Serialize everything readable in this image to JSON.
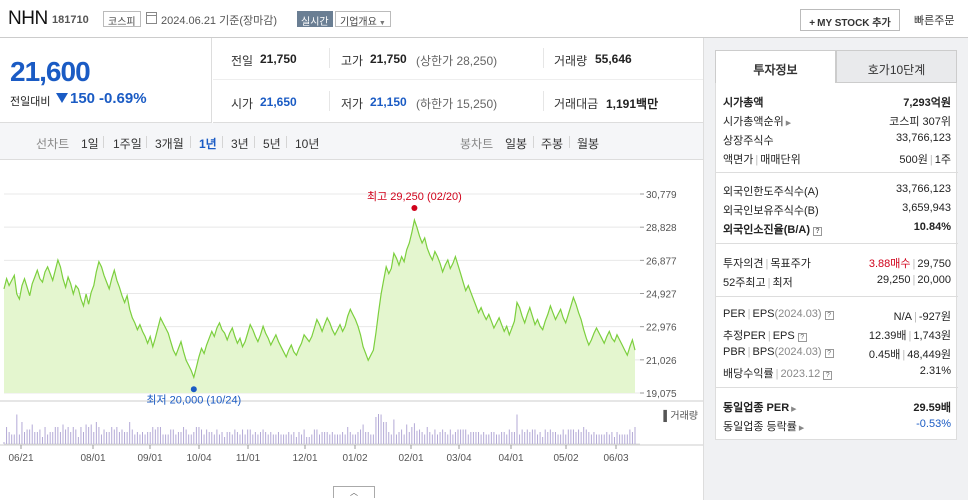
{
  "header": {
    "name": "NHN",
    "code": "181710",
    "market": "코스피",
    "date": "2024.06.21 기준(장마감)",
    "realtime": "실시간",
    "company_info": "기업개요",
    "mystock_label": "MY STOCK 추가",
    "quick_order": "빠른주문"
  },
  "price": {
    "current": "21,600",
    "change_label": "전일대비",
    "change": "150",
    "change_pct": "-0.69%"
  },
  "info": {
    "prev_label": "전일",
    "prev": "21,750",
    "high_label": "고가",
    "high": "21,750",
    "high_sub": "(상한가 28,250)",
    "volume_label": "거래량",
    "volume": "55,646",
    "open_label": "시가",
    "open": "21,650",
    "low_label": "저가",
    "low": "21,150",
    "low_sub": "(하한가 15,250)",
    "amount_label": "거래대금",
    "amount": "1,191",
    "amount_unit": "백만"
  },
  "periods": {
    "line_label": "선차트",
    "line": [
      "1일",
      "1주일",
      "3개월",
      "1년",
      "3년",
      "5년",
      "10년"
    ],
    "active": "1년",
    "candle_label": "봉차트",
    "candle": [
      "일봉",
      "주봉",
      "월봉"
    ]
  },
  "chart_data": {
    "type": "area",
    "yticks": [
      "30,779",
      "28,828",
      "26,877",
      "24,927",
      "22,976",
      "21,026",
      "19,075"
    ],
    "ylim": [
      19075,
      30779
    ],
    "xticks": [
      "06/21",
      "08/01",
      "09/01",
      "10/04",
      "11/01",
      "12/01",
      "01/02",
      "02/01",
      "03/04",
      "04/01",
      "05/02",
      "06/03"
    ],
    "annotations": {
      "high": "최고 29,250 (02/20)",
      "low": "최저 20,000 (10/24)"
    },
    "volume_label": "거래량",
    "price_series": [
      25200,
      25800,
      25400,
      25700,
      26000,
      24900,
      24600,
      25400,
      25800,
      25300,
      24800,
      25500,
      25900,
      26300,
      25800,
      25600,
      26200,
      26500,
      26100,
      25700,
      26300,
      26900,
      26500,
      25800,
      25300,
      25900,
      25500,
      24900,
      25400,
      25200,
      24600,
      24200,
      24900,
      24300,
      25000,
      25400,
      26200,
      26800,
      26500,
      26000,
      25600,
      25200,
      25800,
      26300,
      25700,
      25300,
      24800,
      24400,
      24800,
      24000,
      23500,
      23200,
      22800,
      23100,
      22700,
      22400,
      22000,
      22400,
      21800,
      22300,
      22900,
      23500,
      23200,
      22900,
      22600,
      22100,
      21600,
      21300,
      21700,
      22100,
      21500,
      21000,
      20700,
      20400,
      20000,
      20600,
      21200,
      21700,
      21400,
      21900,
      22300,
      22700,
      22400,
      22900,
      23200,
      22800,
      22600,
      22200,
      22600,
      22900,
      22400,
      22000,
      22300,
      21800,
      22100,
      22600,
      23100,
      22800,
      22400,
      22100,
      22500,
      23000,
      22600,
      22300,
      21900,
      22200,
      22500,
      22100,
      21800,
      21500,
      21200,
      21600,
      21900,
      21500,
      21300,
      21700,
      22000,
      22500,
      22300,
      22100,
      22400,
      22900,
      23400,
      23100,
      22700,
      23100,
      23500,
      23200,
      22800,
      22500,
      22800,
      23100,
      22700,
      23000,
      23600,
      24000,
      23700,
      23400,
      23000,
      22500,
      21800,
      21400,
      21000,
      21300,
      21600,
      22600,
      23800,
      24900,
      25700,
      26500,
      26100,
      26400,
      27300,
      27000,
      26600,
      27100,
      26800,
      27500,
      27900,
      28500,
      29250,
      28800,
      28300,
      27900,
      28200,
      27600,
      27200,
      26900,
      27400,
      27100,
      26700,
      26200,
      26600,
      26900,
      26400,
      26700,
      27100,
      26600,
      26100,
      25600,
      25100,
      25400,
      25000,
      24600,
      24200,
      23800,
      24100,
      23700,
      23400,
      23700,
      23300,
      22900,
      23200,
      23500,
      23100,
      22700,
      23000,
      22500,
      22900,
      23300,
      24400,
      24100,
      23600,
      23200,
      23700,
      24100,
      23600,
      23100,
      23400,
      23000,
      22800,
      23300,
      23700,
      24200,
      23800,
      23400,
      23700,
      24000,
      23500,
      23200,
      23700,
      24200,
      24700,
      24300,
      23800,
      23400,
      22800,
      22300,
      21900,
      22200,
      22600,
      22900,
      22600,
      22300,
      22000,
      22400,
      22700,
      22300,
      22100,
      22500,
      22200,
      21900,
      21600,
      21300,
      21800,
      22200,
      21600
    ]
  },
  "invest": {
    "tab1": "투자정보",
    "tab2": "호가10단계",
    "market_cap_label": "시가총액",
    "market_cap": "7,293억원",
    "cap_rank_label": "시가총액순위",
    "cap_rank": "코스피 307위",
    "shares_label": "상장주식수",
    "shares": "33,766,123",
    "par_label": "액면가",
    "unit_label": "매매단위",
    "par": "500원",
    "unit": "1주",
    "foreign_limit_label": "외국인한도주식수(A)",
    "foreign_limit": "33,766,123",
    "foreign_hold_label": "외국인보유주식수(B)",
    "foreign_hold": "3,659,943",
    "foreign_rate_label": "외국인소진율(B/A)",
    "foreign_rate": "10.84%",
    "opinion_label": "투자의견",
    "target_label": "목표주가",
    "opinion": "3.88매수",
    "target": "29,750",
    "wk52_label": "52주최고",
    "wk52_low_label": "최저",
    "wk52_high": "29,250",
    "wk52_low": "20,000",
    "per_label": "PER",
    "eps_label": "EPS",
    "eps_date": "(2024.03)",
    "per": "N/A",
    "eps": "-927원",
    "est_per_label": "추정PER",
    "est_eps_label": "EPS",
    "est_per": "12.39배",
    "est_eps": "1,743원",
    "pbr_label": "PBR",
    "bps_label": "BPS",
    "bps_date": "(2024.03)",
    "pbr": "0.45배",
    "bps": "48,449원",
    "div_label": "배당수익률",
    "div_date": "2023.12",
    "div": "2.31%",
    "sector_per_label": "동일업종 PER",
    "sector_per": "29.59배",
    "sector_rate_label": "동일업종 등락률",
    "sector_rate": "-0.53%"
  },
  "colors": {
    "blue": "#1a5bc4",
    "red": "#d0021b",
    "line": "#7ccf3e",
    "fill": "#e4f6cf"
  }
}
